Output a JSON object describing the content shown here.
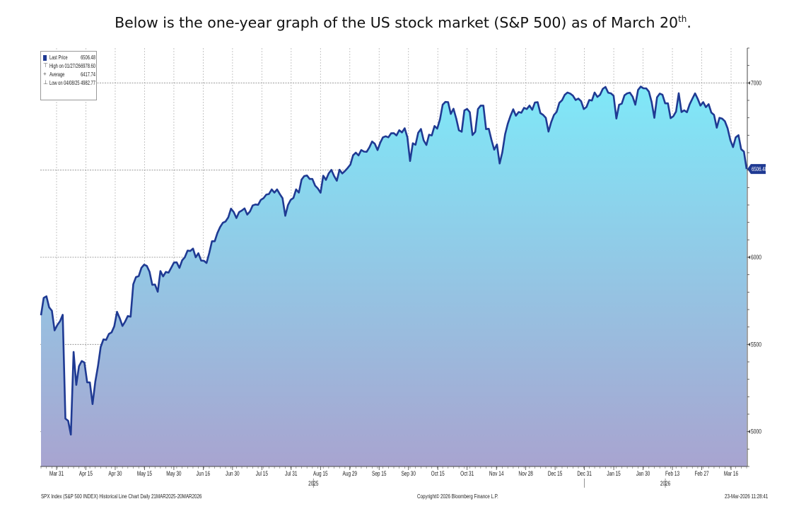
{
  "heading": {
    "text": "Below is the one-year graph of the US stock market (S&P 500) as of March 20",
    "sup": "th",
    "end": "."
  },
  "legend": {
    "items": [
      {
        "label": "Last Price",
        "value": "6506.48",
        "marker": "swatch"
      },
      {
        "label": "High on 01/27/26",
        "value": "6978.60",
        "marker": "up-tick"
      },
      {
        "label": "Average",
        "value": "6417.74",
        "marker": "plus"
      },
      {
        "label": "Low on 04/08/25",
        "value": "4982.77",
        "marker": "down-tick"
      }
    ]
  },
  "footer": {
    "left": "SPX Index (S&P 500 INDEX) Historical Line Chart Daily 21MAR2025-20MAR2026",
    "center": "Copyright© 2026 Bloomberg Finance L.P.",
    "right": "23-Mar-2026 11:28:41"
  },
  "colors": {
    "line": "#1f3a93",
    "fill_top": "#7fe8f8",
    "fill_bottom": "#a8a4d0",
    "badge": "#1f3a93"
  },
  "chart_data": {
    "type": "area",
    "title": "",
    "ylim": [
      4800,
      7200
    ],
    "y_ticks": [
      5000,
      5500,
      6000,
      6500,
      7000
    ],
    "y_tick_labels": [
      "5000",
      "5500",
      "6000",
      "",
      "7000"
    ],
    "last_value_label": "6506.48",
    "x_ticks": [
      "Mar 31",
      "Apr 15",
      "Apr 30",
      "May 15",
      "May 30",
      "Jun 16",
      "Jun 30",
      "Jul 15",
      "Jul 31",
      "Aug 15",
      "Aug 29",
      "Sep 15",
      "Sep 30",
      "Oct 15",
      "Oct 31",
      "Nov 14",
      "Nov 28",
      "Dec 15",
      "Dec 31",
      "Jan 15",
      "Jan 30",
      "Feb 13",
      "Feb 27",
      "Mar 16"
    ],
    "year_labels": [
      {
        "after_tick": "Aug 15",
        "text": "2025"
      },
      {
        "after_tick": "Feb 13",
        "text": "2026"
      }
    ],
    "grid": true,
    "legend_position": "top-left",
    "series": [
      {
        "name": "Last Price",
        "values": [
          5667,
          5767,
          5776,
          5713,
          5693,
          5581,
          5611,
          5633,
          5670,
          5075,
          5062,
          4983,
          5457,
          5268,
          5375,
          5405,
          5396,
          5283,
          5282,
          5158,
          5287,
          5376,
          5485,
          5529,
          5526,
          5560,
          5569,
          5604,
          5687,
          5651,
          5606,
          5631,
          5663,
          5659,
          5845,
          5886,
          5892,
          5939,
          5958,
          5950,
          5917,
          5842,
          5844,
          5802,
          5921,
          5890,
          5916,
          5912,
          5940,
          5970,
          5971,
          5939,
          5982,
          6000,
          6038,
          6036,
          6050,
          6000,
          6023,
          5981,
          5980,
          5967,
          6025,
          6092,
          6092,
          6139,
          6173,
          6198,
          6205,
          6229,
          6279,
          6260,
          6225,
          6259,
          6268,
          6280,
          6245,
          6263,
          6297,
          6303,
          6301,
          6329,
          6339,
          6359,
          6363,
          6389,
          6371,
          6389,
          6362,
          6339,
          6238,
          6299,
          6329,
          6340,
          6389,
          6371,
          6445,
          6466,
          6469,
          6449,
          6449,
          6411,
          6395,
          6370,
          6468,
          6444,
          6481,
          6501,
          6466,
          6439,
          6502,
          6481,
          6495,
          6512,
          6532,
          6585,
          6600,
          6584,
          6615,
          6606,
          6605,
          6631,
          6664,
          6651,
          6615,
          6657,
          6688,
          6694,
          6688,
          6711,
          6712,
          6699,
          6729,
          6716,
          6740,
          6688,
          6552,
          6654,
          6645,
          6714,
          6736,
          6671,
          6644,
          6703,
          6699,
          6753,
          6738,
          6791,
          6875,
          6891,
          6890,
          6822,
          6852,
          6796,
          6728,
          6720,
          6842,
          6851,
          6832,
          6701,
          6720,
          6850,
          6870,
          6870,
          6735,
          6737,
          6672,
          6617,
          6647,
          6538,
          6603,
          6705,
          6766,
          6812,
          6849,
          6812,
          6833,
          6829,
          6857,
          6850,
          6870,
          6846,
          6888,
          6890,
          6827,
          6817,
          6800,
          6721,
          6775,
          6816,
          6834,
          6886,
          6901,
          6932,
          6945,
          6939,
          6927,
          6902,
          6910,
          6895,
          6850,
          6862,
          6902,
          6899,
          6945,
          6920,
          6932,
          6966,
          6977,
          6944,
          6940,
          6926,
          6796,
          6875,
          6881,
          6929,
          6940,
          6944,
          6921,
          6875,
          6960,
          6979,
          6969,
          6969,
          6950,
          6890,
          6800,
          6917,
          6939,
          6932,
          6883,
          6883,
          6798,
          6809,
          6836,
          6941,
          6833,
          6843,
          6832,
          6877,
          6909,
          6940,
          6908,
          6870,
          6890,
          6861,
          6878,
          6830,
          6817,
          6743,
          6800,
          6795,
          6780,
          6740,
          6672,
          6632,
          6688,
          6700,
          6620,
          6606,
          6506
        ]
      }
    ]
  }
}
